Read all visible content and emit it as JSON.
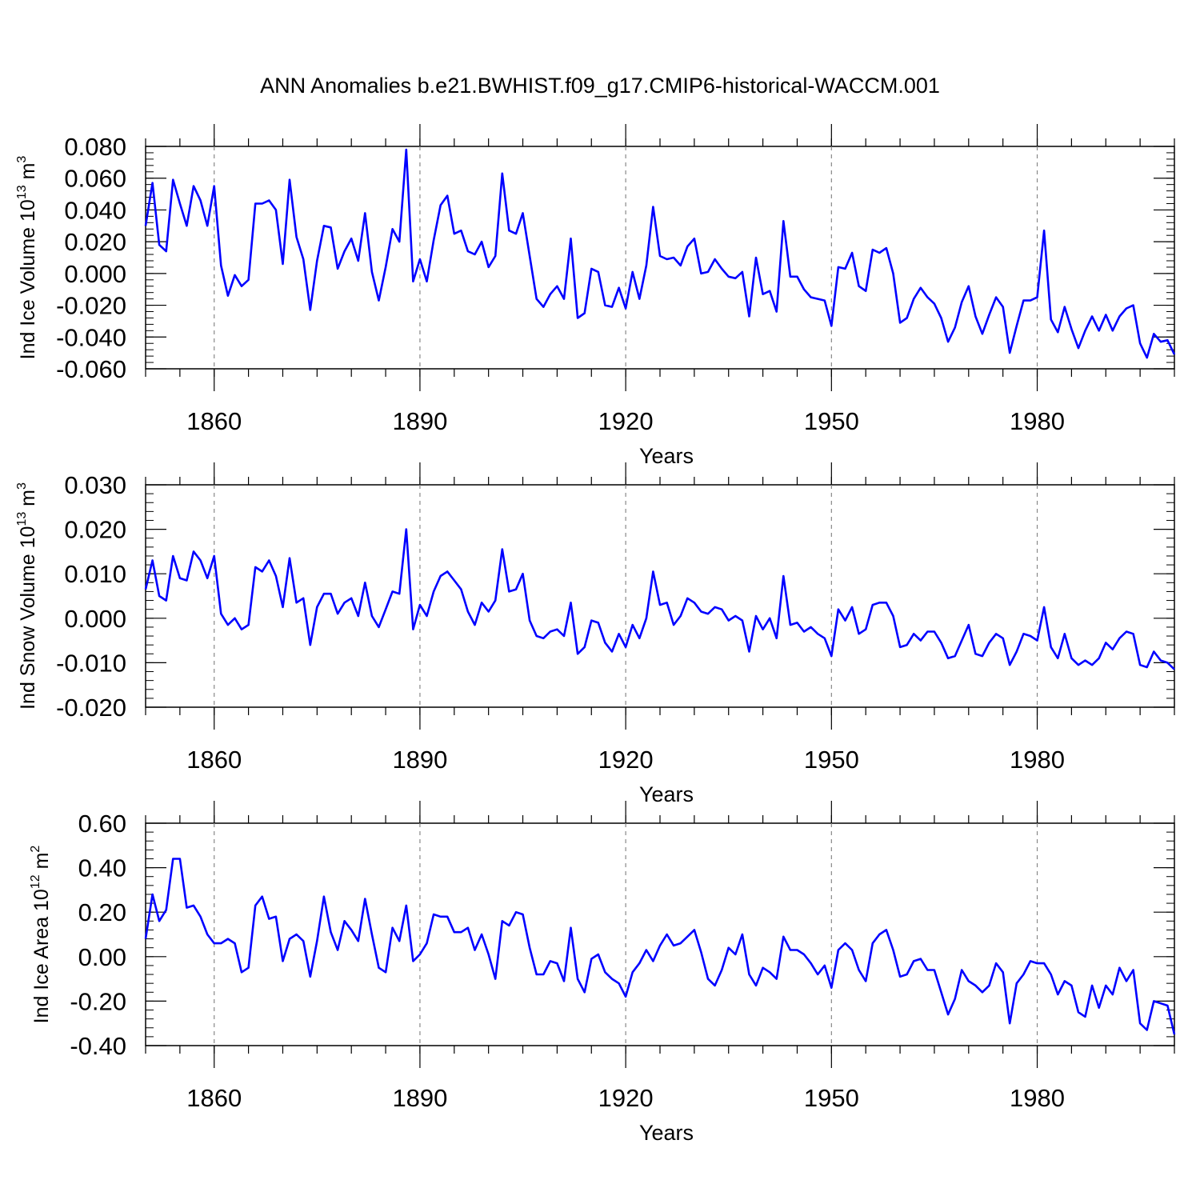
{
  "title": "ANN Anomalies b.e21.BWHIST.f09_g17.CMIP6-historical-WACCM.001",
  "colors": {
    "line": "#0000ff",
    "axis": "#000000",
    "grid": "#888888"
  },
  "chart_data": [
    {
      "type": "line",
      "title": "ANN Anomalies b.e21.BWHIST.f09_g17.CMIP6-historical-WACCM.001",
      "xlabel": "Years",
      "ylabel": "Ind Ice Volume",
      "yunit_base": "10",
      "yunit_exp": "13",
      "yunit_tail": " m",
      "yunit_tail_exp": "3",
      "xlim": [
        1850,
        2000
      ],
      "ylim": [
        -0.06,
        0.08
      ],
      "xticks": [
        "1860",
        "1890",
        "1920",
        "1950",
        "1980"
      ],
      "yticks": [
        "0.080",
        "0.060",
        "0.040",
        "0.020",
        "0.000",
        "-0.020",
        "-0.040",
        "-0.060"
      ],
      "x_start": 1850,
      "values": [
        0.03,
        0.057,
        0.018,
        0.014,
        0.059,
        0.044,
        0.03,
        0.055,
        0.046,
        0.03,
        0.055,
        0.005,
        -0.014,
        -0.001,
        -0.008,
        -0.004,
        0.044,
        0.044,
        0.046,
        0.04,
        0.006,
        0.059,
        0.023,
        0.009,
        -0.023,
        0.008,
        0.03,
        0.029,
        0.003,
        0.014,
        0.022,
        0.008,
        0.038,
        0.001,
        -0.017,
        0.004,
        0.028,
        0.02,
        0.078,
        -0.005,
        0.009,
        -0.005,
        0.021,
        0.043,
        0.049,
        0.025,
        0.027,
        0.014,
        0.012,
        0.02,
        0.004,
        0.011,
        0.063,
        0.027,
        0.025,
        0.038,
        0.011,
        -0.016,
        -0.021,
        -0.013,
        -0.008,
        -0.016,
        0.022,
        -0.028,
        -0.025,
        0.003,
        0.001,
        -0.02,
        -0.021,
        -0.009,
        -0.022,
        0.001,
        -0.016,
        0.005,
        0.042,
        0.011,
        0.009,
        0.01,
        0.005,
        0.017,
        0.022,
        0.0,
        0.001,
        0.009,
        0.003,
        -0.002,
        -0.003,
        0.001,
        -0.027,
        0.01,
        -0.013,
        -0.011,
        -0.024,
        0.033,
        -0.002,
        -0.002,
        -0.01,
        -0.015,
        -0.016,
        -0.017,
        -0.033,
        0.004,
        0.003,
        0.013,
        -0.008,
        -0.011,
        0.015,
        0.013,
        0.016,
        0.0,
        -0.031,
        -0.028,
        -0.016,
        -0.009,
        -0.015,
        -0.019,
        -0.028,
        -0.043,
        -0.034,
        -0.018,
        -0.008,
        -0.027,
        -0.038,
        -0.026,
        -0.015,
        -0.021,
        -0.05,
        -0.033,
        -0.017,
        -0.017,
        -0.015,
        0.027,
        -0.029,
        -0.037,
        -0.021,
        -0.035,
        -0.047,
        -0.036,
        -0.027,
        -0.036,
        -0.026,
        -0.036,
        -0.027,
        -0.022,
        -0.02,
        -0.044,
        -0.053,
        -0.038,
        -0.043,
        -0.042,
        -0.051
      ]
    },
    {
      "type": "line",
      "xlabel": "Years",
      "ylabel": "Ind Snow Volume",
      "yunit_base": "10",
      "yunit_exp": "13",
      "yunit_tail": " m",
      "yunit_tail_exp": "3",
      "xlim": [
        1850,
        2000
      ],
      "ylim": [
        -0.02,
        0.03
      ],
      "xticks": [
        "1860",
        "1890",
        "1920",
        "1950",
        "1980"
      ],
      "yticks": [
        "0.030",
        "0.020",
        "0.010",
        "0.000",
        "-0.010",
        "-0.020"
      ],
      "x_start": 1850,
      "values": [
        0.0065,
        0.013,
        0.005,
        0.004,
        0.014,
        0.009,
        0.0085,
        0.015,
        0.013,
        0.009,
        0.014,
        0.001,
        -0.0015,
        0.0,
        -0.0025,
        -0.0015,
        0.0115,
        0.0105,
        0.013,
        0.0095,
        0.0025,
        0.0135,
        0.0035,
        0.0045,
        -0.006,
        0.0025,
        0.0055,
        0.0055,
        0.001,
        0.0035,
        0.0045,
        0.0005,
        0.008,
        0.0005,
        -0.002,
        0.002,
        0.006,
        0.0055,
        0.02,
        -0.0025,
        0.003,
        0.0005,
        0.006,
        0.0095,
        0.0105,
        0.0085,
        0.0065,
        0.0015,
        -0.0015,
        0.0035,
        0.0015,
        0.004,
        0.0155,
        0.006,
        0.0065,
        0.01,
        -0.0005,
        -0.004,
        -0.0045,
        -0.003,
        -0.0025,
        -0.004,
        0.0035,
        -0.008,
        -0.0065,
        -0.0005,
        -0.001,
        -0.0055,
        -0.0075,
        -0.0035,
        -0.0065,
        -0.0015,
        -0.0045,
        0.0,
        0.0105,
        0.003,
        0.0035,
        -0.0015,
        0.0005,
        0.0045,
        0.0035,
        0.0015,
        0.001,
        0.0025,
        0.002,
        -0.0005,
        0.0005,
        -0.0005,
        -0.0075,
        0.0005,
        -0.0025,
        0.0,
        -0.0045,
        0.0095,
        -0.0015,
        -0.001,
        -0.003,
        -0.002,
        -0.0035,
        -0.0045,
        -0.0085,
        0.002,
        -0.0005,
        0.0025,
        -0.0035,
        -0.0025,
        0.003,
        0.0035,
        0.0035,
        0.0005,
        -0.0065,
        -0.006,
        -0.0035,
        -0.005,
        -0.003,
        -0.003,
        -0.0055,
        -0.009,
        -0.0085,
        -0.005,
        -0.0015,
        -0.008,
        -0.0085,
        -0.0055,
        -0.0035,
        -0.0045,
        -0.0105,
        -0.0075,
        -0.0035,
        -0.004,
        -0.005,
        0.0025,
        -0.0065,
        -0.009,
        -0.0035,
        -0.009,
        -0.0105,
        -0.0095,
        -0.0105,
        -0.009,
        -0.0055,
        -0.007,
        -0.0045,
        -0.003,
        -0.0035,
        -0.0105,
        -0.011,
        -0.0075,
        -0.0095,
        -0.01,
        -0.0115
      ]
    },
    {
      "type": "line",
      "xlabel": "Years",
      "ylabel": "Ind Ice Area",
      "yunit_base": "10",
      "yunit_exp": "12",
      "yunit_tail": " m",
      "yunit_tail_exp": "2",
      "xlim": [
        1850,
        2000
      ],
      "ylim": [
        -0.4,
        0.6
      ],
      "xticks": [
        "1860",
        "1890",
        "1920",
        "1950",
        "1980"
      ],
      "yticks": [
        "0.60",
        "0.40",
        "0.20",
        "0.00",
        "-0.20",
        "-0.40"
      ],
      "x_start": 1850,
      "values": [
        0.08,
        0.28,
        0.16,
        0.21,
        0.44,
        0.44,
        0.22,
        0.23,
        0.18,
        0.1,
        0.06,
        0.06,
        0.08,
        0.06,
        -0.07,
        -0.05,
        0.23,
        0.27,
        0.17,
        0.18,
        -0.02,
        0.08,
        0.1,
        0.07,
        -0.09,
        0.07,
        0.27,
        0.11,
        0.03,
        0.16,
        0.12,
        0.07,
        0.26,
        0.1,
        -0.05,
        -0.07,
        0.13,
        0.07,
        0.23,
        -0.02,
        0.01,
        0.06,
        0.19,
        0.18,
        0.18,
        0.11,
        0.11,
        0.13,
        0.03,
        0.1,
        0.01,
        -0.1,
        0.16,
        0.14,
        0.2,
        0.19,
        0.04,
        -0.08,
        -0.08,
        -0.02,
        -0.03,
        -0.11,
        0.13,
        -0.1,
        -0.16,
        -0.01,
        0.01,
        -0.07,
        -0.1,
        -0.12,
        -0.18,
        -0.07,
        -0.03,
        0.03,
        -0.02,
        0.05,
        0.1,
        0.05,
        0.06,
        0.09,
        0.12,
        0.02,
        -0.1,
        -0.13,
        -0.06,
        0.04,
        0.01,
        0.1,
        -0.08,
        -0.13,
        -0.05,
        -0.07,
        -0.1,
        0.09,
        0.03,
        0.03,
        0.01,
        -0.03,
        -0.08,
        -0.04,
        -0.14,
        0.03,
        0.06,
        0.03,
        -0.06,
        -0.11,
        0.06,
        0.1,
        0.12,
        0.03,
        -0.09,
        -0.08,
        -0.02,
        -0.01,
        -0.06,
        -0.06,
        -0.16,
        -0.26,
        -0.19,
        -0.06,
        -0.11,
        -0.13,
        -0.16,
        -0.13,
        -0.03,
        -0.07,
        -0.3,
        -0.12,
        -0.08,
        -0.02,
        -0.03,
        -0.03,
        -0.08,
        -0.17,
        -0.11,
        -0.13,
        -0.25,
        -0.27,
        -0.13,
        -0.23,
        -0.13,
        -0.17,
        -0.05,
        -0.11,
        -0.06,
        -0.3,
        -0.33,
        -0.2,
        -0.21,
        -0.22,
        -0.35
      ]
    }
  ]
}
